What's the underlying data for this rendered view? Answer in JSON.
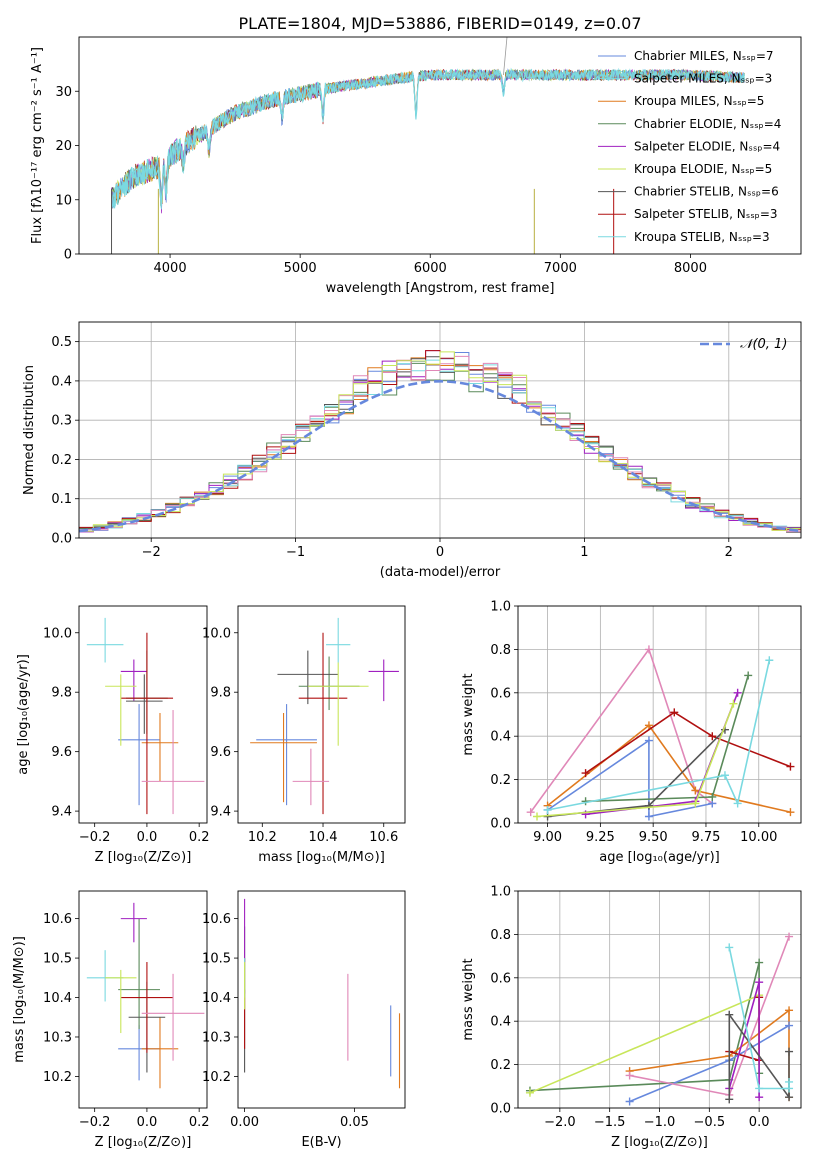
{
  "figure": {
    "title": "PLATE=1804, MJD=53886, FIBERID=0149, z=0.07"
  },
  "colors": {
    "blue": "#6688dd",
    "orange": "#e07a1f",
    "darkorange": "#e38a2b",
    "purple": "#a020c0",
    "gray": "#555555",
    "green": "#5a8a5a",
    "red": "#b01010",
    "cyan": "#7ad9e0",
    "pink": "#e088b8",
    "lime": "#c8e65a",
    "olive": "#b8b040"
  },
  "chart_data": [
    {
      "type": "line",
      "xlabel": "wavelength [Angstrom, rest frame]",
      "ylabel": "Flux [fλ10⁻¹⁷ erg cm⁻² s⁻¹ A⁻¹]",
      "xlim": [
        3300,
        8850
      ],
      "ylim": [
        0,
        40
      ],
      "xticks": [
        4000,
        5000,
        6000,
        7000,
        8000
      ],
      "yticks": [
        0,
        10,
        20,
        30
      ],
      "grid": false,
      "legend": "top-right",
      "legend_entries": [
        {
          "name": "Chabrier MILES, N_SSP=7",
          "color": "#6688dd"
        },
        {
          "name": "Salpeter MILES, N_SSP=3",
          "color": "#7ad9e0"
        },
        {
          "name": "Kroupa MILES, N_SSP=5",
          "color": "#e07a1f"
        },
        {
          "name": "Chabrier ELODIE, N_SSP=4",
          "color": "#5a8a5a"
        },
        {
          "name": "Salpeter ELODIE, N_SSP=4",
          "color": "#a020c0"
        },
        {
          "name": "Kroupa ELODIE, N_SSP=5",
          "color": "#c8e65a"
        },
        {
          "name": "Chabrier STELIB, N_SSP=6",
          "color": "#555555"
        },
        {
          "name": "Salpeter STELIB, N_SSP=3",
          "color": "#b01010"
        },
        {
          "name": "Kroupa STELIB, N_SSP=3",
          "color": "#7ad9e0"
        }
      ],
      "continuum": [
        [
          3550,
          10
        ],
        [
          3700,
          14
        ],
        [
          3900,
          16
        ],
        [
          4100,
          20
        ],
        [
          4300,
          23
        ],
        [
          4500,
          26
        ],
        [
          4800,
          28.5
        ],
        [
          5000,
          29.5
        ],
        [
          5200,
          30.5
        ],
        [
          5500,
          31.5
        ],
        [
          5800,
          32.5
        ],
        [
          6000,
          33
        ],
        [
          6500,
          33
        ],
        [
          7000,
          33
        ],
        [
          7500,
          33
        ],
        [
          8000,
          33
        ],
        [
          8400,
          32.5
        ]
      ]
    },
    {
      "type": "histogram",
      "xlabel": "(data-model)/error",
      "ylabel": "Normed distribution",
      "xlim": [
        -2.5,
        2.5
      ],
      "ylim": [
        0,
        0.55
      ],
      "xticks": [
        -2,
        -1,
        0,
        1,
        2
      ],
      "yticks": [
        0.0,
        0.1,
        0.2,
        0.3,
        0.4,
        0.5
      ],
      "grid": true,
      "legend": "top-right",
      "legend_label": "𝒩(0, 1)",
      "reference_curve": {
        "name": "N(0,1)",
        "mean": 0,
        "sigma": 1,
        "color": "#6688dd"
      },
      "bin_width": 0.1
    },
    {
      "type": "scatter",
      "panel": "age vs Z",
      "xlabel": "Z [log₁₀(Z/Z⊙)]",
      "ylabel": "age  [log₁₀(age/yr)]",
      "xlim": [
        -0.26,
        0.23
      ],
      "ylim": [
        9.36,
        10.09
      ],
      "xticks": [
        -0.2,
        0.0,
        0.2
      ],
      "yticks": [
        9.4,
        9.6,
        9.8,
        10.0
      ],
      "points": [
        {
          "x": -0.03,
          "y": 9.64,
          "ex": 0.08,
          "ey": [
            0.22,
            0.12
          ],
          "color": "#6688dd"
        },
        {
          "x": 0.05,
          "y": 9.63,
          "ex": 0.07,
          "ey": [
            0.13,
            0.1
          ],
          "color": "#e07a1f"
        },
        {
          "x": 0.0,
          "y": 9.78,
          "ex": 0.08,
          "ey": [
            0.12,
            0.16
          ],
          "color": "#5a8a5a"
        },
        {
          "x": -0.05,
          "y": 9.87,
          "ex": 0.05,
          "ey": [
            0.1,
            0.04
          ],
          "color": "#a020c0"
        },
        {
          "x": -0.01,
          "y": 9.77,
          "ex": 0.07,
          "ey": [
            0.11,
            0.09
          ],
          "color": "#555555"
        },
        {
          "x": 0.0,
          "y": 9.78,
          "ex": 0.1,
          "ey": [
            0.39,
            0.22
          ],
          "color": "#b01010"
        },
        {
          "x": -0.16,
          "y": 9.96,
          "ex": 0.07,
          "ey": [
            0.06,
            0.09
          ],
          "color": "#7ad9e0"
        },
        {
          "x": 0.1,
          "y": 9.5,
          "ex": 0.12,
          "ey": [
            0.11,
            0.24
          ],
          "color": "#e088b8"
        },
        {
          "x": -0.1,
          "y": 9.82,
          "ex": 0.06,
          "ey": [
            0.2,
            0.04
          ],
          "color": "#c8e65a"
        }
      ]
    },
    {
      "type": "scatter",
      "panel": "age vs mass",
      "xlabel": "mass [log₁₀(M/M⊙)]",
      "xlim": [
        10.12,
        10.67
      ],
      "ylim": [
        9.36,
        10.09
      ],
      "xticks": [
        10.2,
        10.4,
        10.6
      ],
      "yticks": [
        9.4,
        9.6,
        9.8,
        10.0
      ],
      "points": [
        {
          "x": 10.28,
          "y": 9.64,
          "ex": 0.1,
          "ey": [
            0.22,
            0.12
          ],
          "color": "#6688dd"
        },
        {
          "x": 10.27,
          "y": 9.63,
          "ex": 0.11,
          "ey": [
            0.2,
            0.1
          ],
          "color": "#e07a1f"
        },
        {
          "x": 10.42,
          "y": 9.82,
          "ex": 0.1,
          "ey": [
            0.08,
            0.1
          ],
          "color": "#5a8a5a"
        },
        {
          "x": 10.6,
          "y": 9.87,
          "ex": 0.05,
          "ey": [
            0.1,
            0.04
          ],
          "color": "#a020c0"
        },
        {
          "x": 10.35,
          "y": 9.86,
          "ex": 0.1,
          "ey": [
            0.1,
            0.08
          ],
          "color": "#555555"
        },
        {
          "x": 10.4,
          "y": 9.78,
          "ex": 0.08,
          "ey": [
            0.39,
            0.22
          ],
          "color": "#b01010"
        },
        {
          "x": 10.45,
          "y": 9.96,
          "ex": 0.04,
          "ey": [
            0.06,
            0.09
          ],
          "color": "#7ad9e0"
        },
        {
          "x": 10.36,
          "y": 9.5,
          "ex": 0.06,
          "ey": [
            0.08,
            0.11
          ],
          "color": "#e088b8"
        },
        {
          "x": 10.45,
          "y": 9.82,
          "ex": 0.1,
          "ey": [
            0.2,
            0.08
          ],
          "color": "#c8e65a"
        }
      ]
    },
    {
      "type": "line",
      "panel": "mass weight vs age",
      "xlabel": "age  [log₁₀(age/yr)]",
      "ylabel": "mass weight",
      "xlim": [
        8.86,
        10.2
      ],
      "ylim": [
        0,
        1
      ],
      "xticks": [
        9.0,
        9.25,
        9.5,
        9.75,
        10.0
      ],
      "yticks": [
        0.0,
        0.2,
        0.4,
        0.6,
        0.8,
        1.0
      ],
      "grid": true,
      "series": [
        {
          "color": "#e088b8",
          "x": [
            8.92,
            9.48,
            9.7,
            9.78
          ],
          "y": [
            0.05,
            0.8,
            0.15,
            0.09
          ]
        },
        {
          "color": "#6688dd",
          "x": [
            9.0,
            9.48,
            9.48,
            9.78
          ],
          "y": [
            0.06,
            0.38,
            0.03,
            0.09
          ]
        },
        {
          "color": "#e07a1f",
          "x": [
            9.0,
            9.48,
            9.7,
            10.15
          ],
          "y": [
            0.08,
            0.45,
            0.15,
            0.05
          ]
        },
        {
          "color": "#b01010",
          "x": [
            9.18,
            9.6,
            9.78,
            10.15
          ],
          "y": [
            0.23,
            0.51,
            0.4,
            0.26
          ]
        },
        {
          "color": "#5a8a5a",
          "x": [
            9.18,
            9.78,
            9.95
          ],
          "y": [
            0.1,
            0.12,
            0.68
          ]
        },
        {
          "color": "#a020c0",
          "x": [
            9.18,
            9.7,
            9.9
          ],
          "y": [
            0.04,
            0.1,
            0.6
          ]
        },
        {
          "color": "#555555",
          "x": [
            9.0,
            9.48,
            9.84
          ],
          "y": [
            0.03,
            0.08,
            0.43
          ]
        },
        {
          "color": "#c8e65a",
          "x": [
            8.95,
            9.7,
            9.88
          ],
          "y": [
            0.03,
            0.09,
            0.55
          ]
        },
        {
          "color": "#7ad9e0",
          "x": [
            9.0,
            9.84,
            9.9,
            10.05
          ],
          "y": [
            0.06,
            0.22,
            0.09,
            0.75
          ]
        }
      ]
    },
    {
      "type": "scatter",
      "panel": "mass vs Z",
      "xlabel": "Z [log₁₀(Z/Z⊙)]",
      "ylabel": "mass [log₁₀(M/M⊙)]",
      "xlim": [
        -0.26,
        0.23
      ],
      "ylim": [
        10.12,
        10.67
      ],
      "xticks": [
        -0.2,
        0.0,
        0.2
      ],
      "yticks": [
        10.2,
        10.3,
        10.4,
        10.5,
        10.6
      ],
      "points": [
        {
          "x": -0.03,
          "y": 10.27,
          "ex": 0.08,
          "ey": [
            0.08,
            0.06
          ],
          "color": "#6688dd"
        },
        {
          "x": 0.05,
          "y": 10.27,
          "ex": 0.07,
          "ey": [
            0.1,
            0.08
          ],
          "color": "#e07a1f"
        },
        {
          "x": -0.03,
          "y": 10.42,
          "ex": 0.08,
          "ey": [
            0.1,
            0.18
          ],
          "color": "#5a8a5a"
        },
        {
          "x": -0.05,
          "y": 10.6,
          "ex": 0.05,
          "ey": [
            0.06,
            0.04
          ],
          "color": "#a020c0"
        },
        {
          "x": 0.0,
          "y": 10.35,
          "ex": 0.07,
          "ey": [
            0.14,
            0.09
          ],
          "color": "#555555"
        },
        {
          "x": 0.0,
          "y": 10.4,
          "ex": 0.1,
          "ey": [
            0.14,
            0.09
          ],
          "color": "#b01010"
        },
        {
          "x": -0.16,
          "y": 10.45,
          "ex": 0.07,
          "ey": [
            0.06,
            0.07
          ],
          "color": "#7ad9e0"
        },
        {
          "x": 0.1,
          "y": 10.36,
          "ex": 0.12,
          "ey": [
            0.12,
            0.1
          ],
          "color": "#e088b8"
        },
        {
          "x": -0.1,
          "y": 10.45,
          "ex": 0.06,
          "ey": [
            0.14,
            0.02
          ],
          "color": "#c8e65a"
        }
      ]
    },
    {
      "type": "scatter",
      "panel": "mass vs E(B-V)",
      "xlabel": "E(B-V)",
      "xlim": [
        -0.003,
        0.073
      ],
      "ylim": [
        10.12,
        10.67
      ],
      "xticks": [
        0.0,
        0.05
      ],
      "xticklabels": [
        "0.00",
        "0.05"
      ],
      "yticks": [
        10.2,
        10.3,
        10.4,
        10.5,
        10.6
      ],
      "points": [
        {
          "x": 0.0665,
          "y": 10.28,
          "ey": [
            0.08,
            0.1
          ],
          "color": "#6688dd"
        },
        {
          "x": 0.0705,
          "y": 10.26,
          "ey": [
            0.09,
            0.1
          ],
          "color": "#e07a1f"
        },
        {
          "x": 0.0,
          "y": 10.51,
          "ey": [
            0.1,
            0.07
          ],
          "color": "#5a8a5a"
        },
        {
          "x": 0.0,
          "y": 10.55,
          "ey": [
            0.06,
            0.1
          ],
          "color": "#a020c0"
        },
        {
          "x": 0.0,
          "y": 10.31,
          "ey": [
            0.1,
            0.11
          ],
          "color": "#555555"
        },
        {
          "x": 0.0,
          "y": 10.37,
          "ey": [
            0.1,
            0.13
          ],
          "color": "#b01010"
        },
        {
          "x": 0.0,
          "y": 10.45,
          "ey": [
            0.05,
            0.05
          ],
          "color": "#7ad9e0"
        },
        {
          "x": 0.047,
          "y": 10.35,
          "ey": [
            0.11,
            0.11
          ],
          "color": "#e088b8"
        },
        {
          "x": 0.0,
          "y": 10.43,
          "ey": [
            0.06,
            0.06
          ],
          "color": "#c8e65a"
        }
      ]
    },
    {
      "type": "line",
      "panel": "mass weight vs Z",
      "xlabel": "Z [log₁₀(Z/Z⊙)]",
      "ylabel": "mass weight",
      "xlim": [
        -2.42,
        0.42
      ],
      "ylim": [
        0,
        1
      ],
      "xticks": [
        -2.0,
        -1.5,
        -1.0,
        -0.5,
        0.0
      ],
      "yticks": [
        0.0,
        0.2,
        0.4,
        0.6,
        0.8,
        1.0
      ],
      "grid": true,
      "series": [
        {
          "color": "#5a8a5a",
          "x": [
            -2.3,
            -0.3,
            0.0,
            0.0
          ],
          "y": [
            0.08,
            0.13,
            0.67,
            0.16
          ]
        },
        {
          "color": "#c8e65a",
          "x": [
            -2.3,
            0.0,
            0.0
          ],
          "y": [
            0.07,
            0.52,
            0.22
          ]
        },
        {
          "color": "#e07a1f",
          "x": [
            -1.3,
            -0.3,
            0.3,
            0.3
          ],
          "y": [
            0.17,
            0.24,
            0.45,
            0.05
          ]
        },
        {
          "color": "#6688dd",
          "x": [
            -1.3,
            -0.3,
            0.3
          ],
          "y": [
            0.03,
            0.22,
            0.38
          ]
        },
        {
          "color": "#e088b8",
          "x": [
            -1.3,
            -0.3,
            0.3
          ],
          "y": [
            0.15,
            0.06,
            0.79
          ]
        },
        {
          "color": "#b01010",
          "x": [
            -0.3,
            0.0,
            0.0
          ],
          "y": [
            0.26,
            0.22,
            0.51
          ]
        },
        {
          "color": "#a020c0",
          "x": [
            -0.3,
            0.0,
            0.0
          ],
          "y": [
            0.09,
            0.58,
            0.05
          ]
        },
        {
          "color": "#555555",
          "x": [
            -0.3,
            -0.3,
            0.3,
            0.3
          ],
          "y": [
            0.04,
            0.43,
            0.05,
            0.26
          ]
        },
        {
          "color": "#7ad9e0",
          "x": [
            -0.3,
            0.0,
            0.3,
            0.3
          ],
          "y": [
            0.74,
            0.09,
            0.09,
            0.12
          ]
        }
      ]
    }
  ]
}
